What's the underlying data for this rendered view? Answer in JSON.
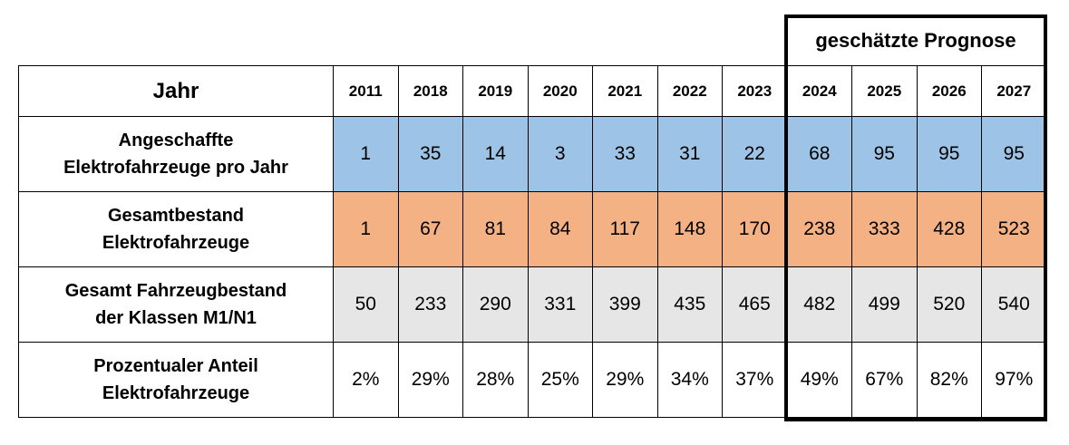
{
  "forecast_label": "geschätzte Prognose",
  "chart_data": {
    "type": "table",
    "header": "Jahr",
    "columns": [
      "2011",
      "2018",
      "2019",
      "2020",
      "2021",
      "2022",
      "2023",
      "2024",
      "2025",
      "2026",
      "2027"
    ],
    "forecast_columns": [
      "2024",
      "2025",
      "2026",
      "2027"
    ],
    "rows": [
      {
        "label_lines": [
          "Angeschaffte",
          "Elektrofahrzeuge pro Jahr"
        ],
        "color": "#9dc3e6",
        "values": [
          "1",
          "35",
          "14",
          "3",
          "33",
          "31",
          "22",
          "68",
          "95",
          "95",
          "95"
        ]
      },
      {
        "label_lines": [
          "Gesamtbestand",
          "Elektrofahrzeuge"
        ],
        "color": "#f4b183",
        "values": [
          "1",
          "67",
          "81",
          "84",
          "117",
          "148",
          "170",
          "238",
          "333",
          "428",
          "523"
        ]
      },
      {
        "label_lines": [
          "Gesamt Fahrzeugbestand",
          "der Klassen M1/N1"
        ],
        "color": "#e7e6e6",
        "values": [
          "50",
          "233",
          "290",
          "331",
          "399",
          "435",
          "465",
          "482",
          "499",
          "520",
          "540"
        ]
      },
      {
        "label_lines": [
          "Prozentualer Anteil",
          "Elektrofahrzeuge"
        ],
        "color": "#ffffff",
        "values": [
          "2%",
          "29%",
          "28%",
          "25%",
          "29%",
          "34%",
          "37%",
          "49%",
          "67%",
          "82%",
          "97%"
        ]
      }
    ]
  }
}
